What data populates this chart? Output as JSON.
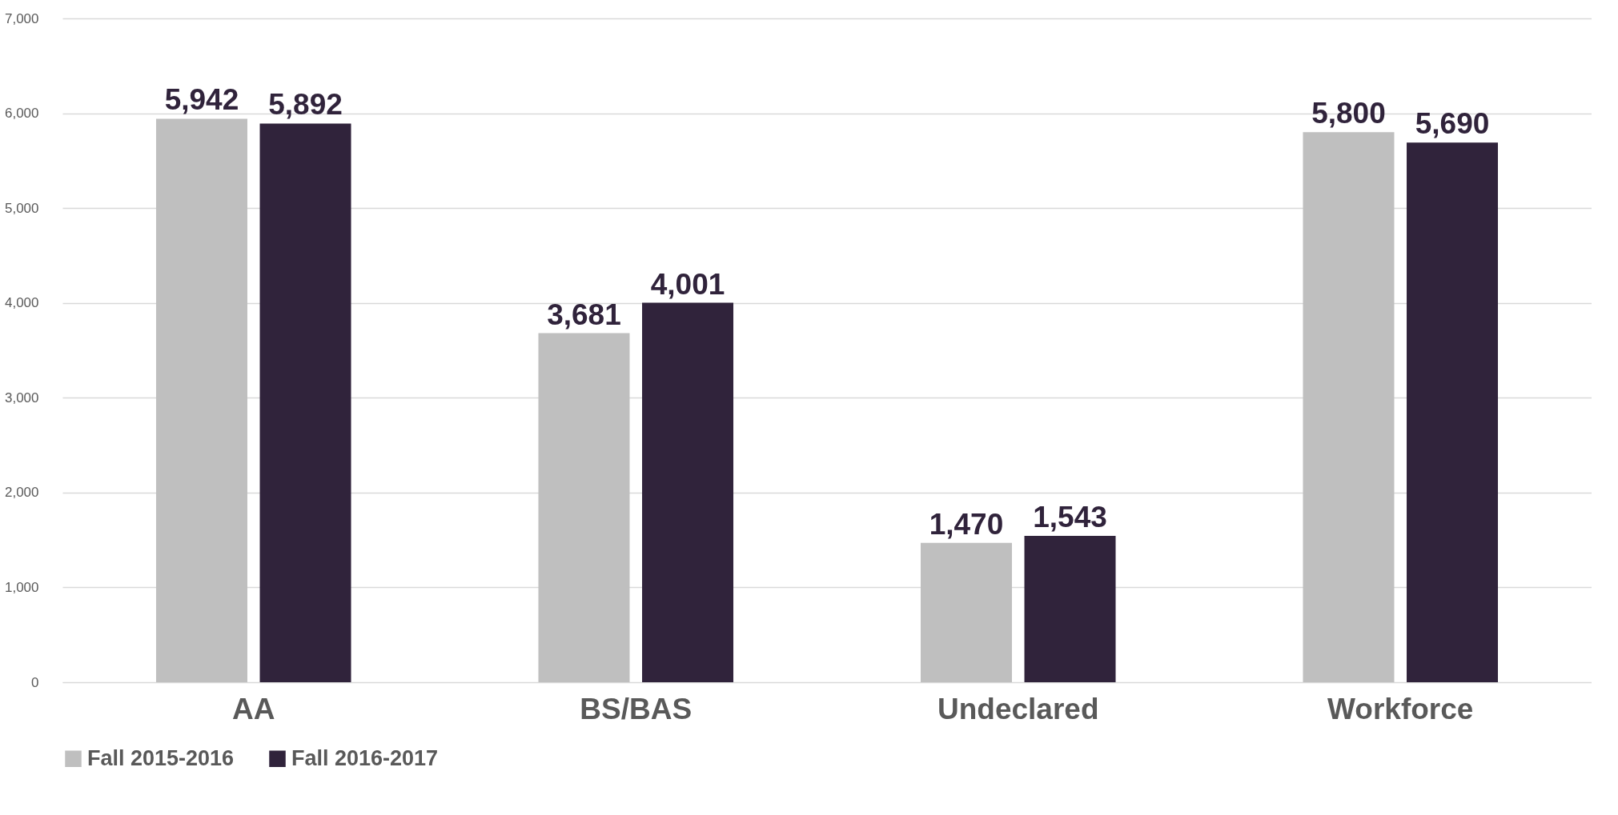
{
  "chart_data": {
    "type": "bar",
    "categories": [
      "AA",
      "BS/BAS",
      "Undeclared",
      "Workforce"
    ],
    "series": [
      {
        "name": "Fall 2015-2016",
        "color": "#bfbfbf",
        "values": [
          5942,
          3681,
          1470,
          5800
        ],
        "value_labels": [
          "5,942",
          "3,681",
          "1,470",
          "5,800"
        ]
      },
      {
        "name": "Fall 2016-2017",
        "color": "#30233b",
        "values": [
          5892,
          4001,
          1543,
          5690
        ],
        "value_labels": [
          "5,892",
          "4,001",
          "1,543",
          "5,690"
        ]
      }
    ],
    "ylim": [
      0,
      7000
    ],
    "yticks": [
      {
        "value": 0,
        "label": "0"
      },
      {
        "value": 1000,
        "label": "1,000"
      },
      {
        "value": 2000,
        "label": "2,000"
      },
      {
        "value": 3000,
        "label": "3,000"
      },
      {
        "value": 4000,
        "label": "4,000"
      },
      {
        "value": 5000,
        "label": "5,000"
      },
      {
        "value": 6000,
        "label": "6,000"
      },
      {
        "value": 7000,
        "label": "7,000"
      }
    ],
    "grid": "y",
    "legend": "bottom"
  }
}
